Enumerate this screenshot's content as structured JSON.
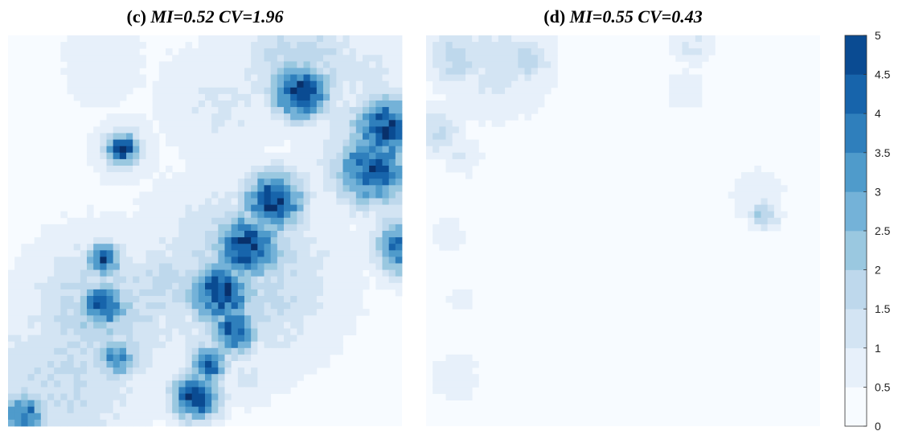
{
  "panels": [
    {
      "label": "(c)",
      "mi_text": "MI=0.52",
      "cv_text": "CV=1.96",
      "mi": 0.52,
      "cv": 1.96
    },
    {
      "label": "(d)",
      "mi_text": "MI=0.55",
      "cv_text": "CV=0.43",
      "mi": 0.55,
      "cv": 0.43
    }
  ],
  "colorbar": {
    "ticks": [
      "0",
      "0.5",
      "1",
      "1.5",
      "2",
      "2.5",
      "3",
      "3.5",
      "4",
      "4.5",
      "5"
    ],
    "colors": [
      "#f7fbff",
      "#e7f0fa",
      "#d3e4f3",
      "#bed8ec",
      "#9ac8e0",
      "#74b2d8",
      "#4f9bcb",
      "#2f7fbc",
      "#1764ab",
      "#0a4b92",
      "#08306b"
    ]
  },
  "chart_data": [
    {
      "type": "heatmap",
      "title": "(c) MI=0.52 CV=1.96",
      "value_range": [
        0,
        5
      ],
      "grid": "60x60 map",
      "blobs": [
        {
          "col": 44,
          "row": 8,
          "r": 3.0,
          "value": 5.0
        },
        {
          "col": 44,
          "row": 4,
          "r": 6.5,
          "value": 1.6
        },
        {
          "col": 57,
          "row": 14,
          "r": 3.5,
          "value": 4.6
        },
        {
          "col": 55,
          "row": 20,
          "r": 4.0,
          "value": 4.3
        },
        {
          "col": 56,
          "row": 17,
          "r": 6.5,
          "value": 1.8
        },
        {
          "col": 60,
          "row": 32,
          "r": 3.0,
          "value": 4.2
        },
        {
          "col": 17,
          "row": 17,
          "r": 1.8,
          "value": 4.6
        },
        {
          "col": 17,
          "row": 17,
          "r": 3.2,
          "value": 1.3
        },
        {
          "col": 32,
          "row": 39,
          "r": 3.5,
          "value": 4.5
        },
        {
          "col": 36,
          "row": 32,
          "r": 3.5,
          "value": 4.7
        },
        {
          "col": 40,
          "row": 25,
          "r": 3.2,
          "value": 4.8
        },
        {
          "col": 34,
          "row": 45,
          "r": 2.5,
          "value": 4.3
        },
        {
          "col": 35,
          "row": 36,
          "r": 10.0,
          "value": 1.6
        },
        {
          "col": 14,
          "row": 34,
          "r": 1.8,
          "value": 4.4
        },
        {
          "col": 14,
          "row": 41,
          "r": 2.5,
          "value": 4.3
        },
        {
          "col": 14,
          "row": 42,
          "r": 8.0,
          "value": 1.7
        },
        {
          "col": 16,
          "row": 49,
          "r": 2.2,
          "value": 3.4
        },
        {
          "col": 28,
          "row": 55,
          "r": 2.5,
          "value": 4.8
        },
        {
          "col": 30,
          "row": 50,
          "r": 2.0,
          "value": 4.2
        },
        {
          "col": 2,
          "row": 58,
          "r": 2.5,
          "value": 3.8
        },
        {
          "col": 8,
          "row": 52,
          "r": 9.0,
          "value": 1.3
        },
        {
          "col": 24,
          "row": 38,
          "r": 5.0,
          "value": 1.5
        },
        {
          "col": 36,
          "row": 52,
          "r": 3.0,
          "value": 0.9
        },
        {
          "col": 54,
          "row": 6,
          "r": 5.0,
          "value": 0.9
        },
        {
          "col": 32,
          "row": 10,
          "r": 7.0,
          "value": 0.8
        },
        {
          "col": 14,
          "row": 4,
          "r": 5.0,
          "value": 0.6
        }
      ]
    },
    {
      "type": "heatmap",
      "title": "(d) MI=0.55 CV=0.43",
      "value_range": [
        0,
        5
      ],
      "grid": "60x60 map",
      "blobs": [
        {
          "col": 10,
          "row": 3,
          "r": 6.0,
          "value": 1.0
        },
        {
          "col": 4,
          "row": 3,
          "r": 3.0,
          "value": 1.6
        },
        {
          "col": 15,
          "row": 3,
          "r": 2.5,
          "value": 1.5
        },
        {
          "col": 1,
          "row": 14,
          "r": 2.5,
          "value": 1.4
        },
        {
          "col": 5,
          "row": 18,
          "r": 2.0,
          "value": 0.8
        },
        {
          "col": 40,
          "row": 1,
          "r": 2.0,
          "value": 0.9
        },
        {
          "col": 39,
          "row": 8,
          "r": 2.0,
          "value": 0.7
        },
        {
          "col": 51,
          "row": 27,
          "r": 1.5,
          "value": 2.0
        },
        {
          "col": 50,
          "row": 24,
          "r": 3.0,
          "value": 0.6
        },
        {
          "col": 3,
          "row": 30,
          "r": 1.6,
          "value": 0.8
        },
        {
          "col": 5,
          "row": 40,
          "r": 1.4,
          "value": 0.7
        },
        {
          "col": 4,
          "row": 52,
          "r": 3.0,
          "value": 0.5
        }
      ]
    }
  ]
}
